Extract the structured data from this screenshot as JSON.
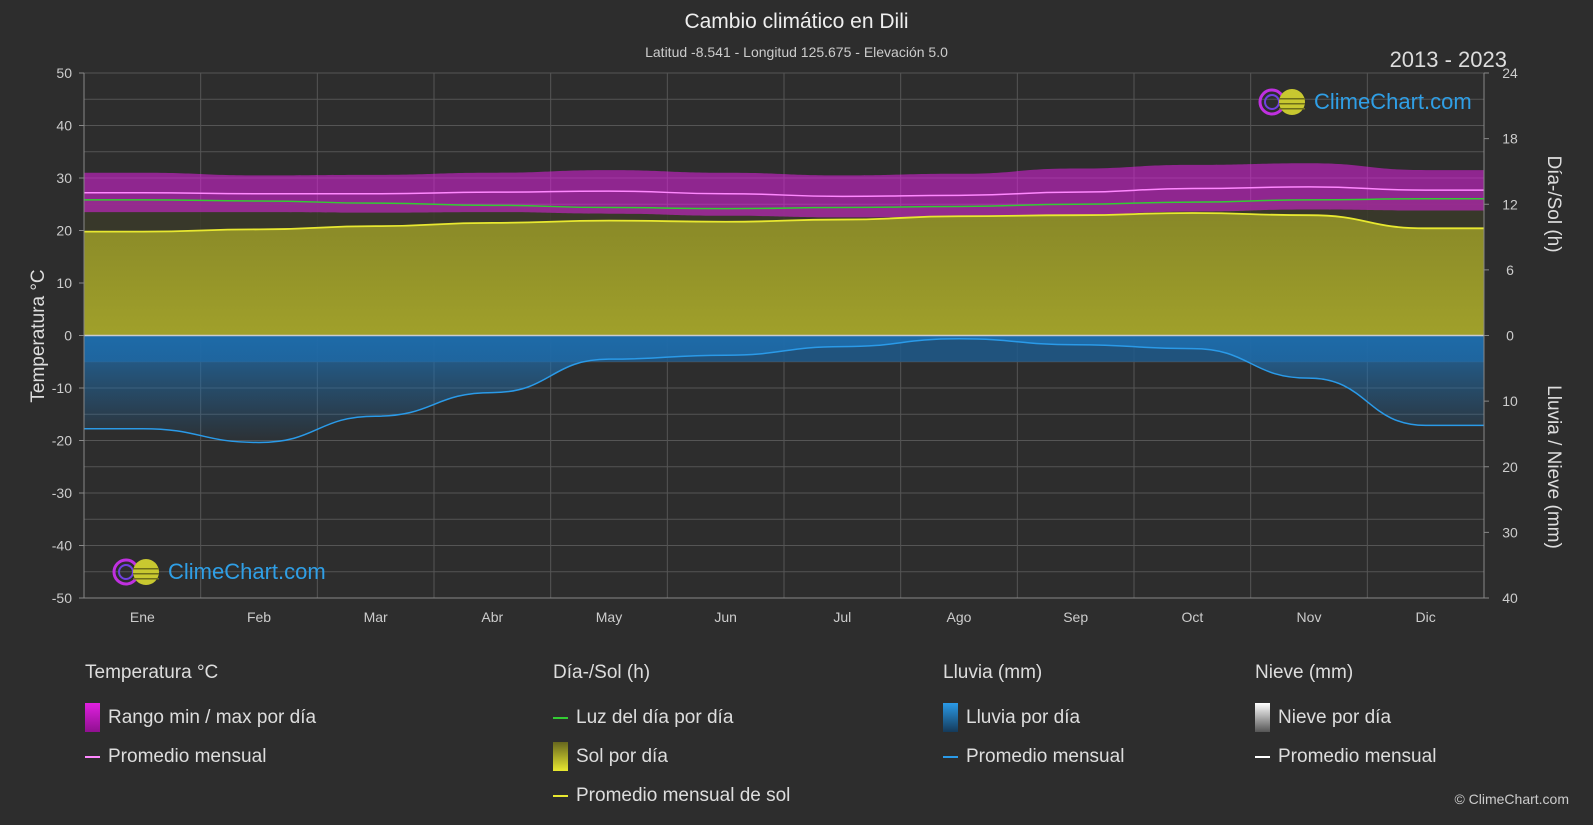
{
  "title": "Cambio climático en Dili",
  "subtitle": "Latitud -8.541 - Longitud 125.675 - Elevación 5.0",
  "years": "2013 - 2023",
  "copyright": "© ClimeChart.com",
  "logo_text": "ClimeChart.com",
  "colors": {
    "background": "#2d2d2d",
    "temp_range": "#e020e0",
    "temp_avg": "#ff88ff",
    "daylight": "#33cc33",
    "sunshine_fill": "#b8b828",
    "sunshine_avg": "#e8e830",
    "rain_fill": "#1e6fb0",
    "rain_avg": "#2a9ae8",
    "snow_avg": "#ffffff"
  },
  "chart_data": {
    "type": "line",
    "categories": [
      "Ene",
      "Feb",
      "Mar",
      "Abr",
      "May",
      "Jun",
      "Jul",
      "Ago",
      "Sep",
      "Oct",
      "Nov",
      "Dic"
    ],
    "left_axis": {
      "label": "Temperatura °C",
      "range": [
        -50,
        50
      ],
      "ticks": [
        "50",
        "40",
        "30",
        "20",
        "10",
        "0",
        "-10",
        "-20",
        "-30",
        "-40",
        "-50"
      ]
    },
    "right_axis_top": {
      "label": "Día-/Sol (h)",
      "range": [
        0,
        24
      ],
      "ticks": [
        "24",
        "18",
        "12",
        "6",
        "0"
      ]
    },
    "right_axis_bottom": {
      "label": "Lluvia / Nieve (mm)",
      "range": [
        0,
        40
      ],
      "ticks": [
        "0",
        "10",
        "20",
        "30",
        "40"
      ]
    },
    "grid": true,
    "series": [
      {
        "name": "Rango min / max por día",
        "axis": "temp",
        "kind": "band",
        "min": [
          23.5,
          23.5,
          23.4,
          23.5,
          23.2,
          22.8,
          22.5,
          22.6,
          23.0,
          23.6,
          24.0,
          23.8
        ],
        "max": [
          31.0,
          30.5,
          30.6,
          31.0,
          31.5,
          31.0,
          30.5,
          30.8,
          31.8,
          32.5,
          32.8,
          31.5
        ]
      },
      {
        "name": "Promedio mensual",
        "axis": "temp",
        "kind": "line",
        "values": [
          27.2,
          27.0,
          27.0,
          27.3,
          27.5,
          27.0,
          26.5,
          26.7,
          27.3,
          28.0,
          28.3,
          27.7
        ]
      },
      {
        "name": "Luz del día por día",
        "axis": "sun",
        "kind": "line",
        "values": [
          12.4,
          12.3,
          12.1,
          11.9,
          11.7,
          11.6,
          11.7,
          11.8,
          12.0,
          12.2,
          12.4,
          12.5
        ]
      },
      {
        "name": "Sol por día",
        "axis": "sun",
        "kind": "area",
        "values": [
          9.5,
          9.7,
          10.0,
          10.3,
          10.5,
          10.4,
          10.6,
          10.9,
          11.0,
          11.2,
          11.0,
          9.8
        ]
      },
      {
        "name": "Promedio mensual de sol",
        "axis": "sun",
        "kind": "line",
        "values": [
          9.5,
          9.7,
          10.0,
          10.3,
          10.5,
          10.4,
          10.6,
          10.9,
          11.0,
          11.2,
          11.0,
          9.8
        ]
      },
      {
        "name": "Lluvia por día",
        "axis": "rain",
        "kind": "area",
        "values": [
          14.2,
          16.3,
          12.3,
          8.7,
          3.6,
          3.0,
          1.7,
          0.5,
          1.4,
          2.0,
          6.5,
          13.7
        ]
      },
      {
        "name": "Promedio mensual",
        "axis": "rain",
        "kind": "line",
        "values": [
          14.2,
          16.3,
          12.3,
          8.7,
          3.6,
          3.0,
          1.7,
          0.5,
          1.4,
          2.0,
          6.5,
          13.7
        ]
      }
    ]
  },
  "legend": {
    "temperature": {
      "title": "Temperatura °C",
      "items": [
        "Rango min / max por día",
        "Promedio mensual"
      ]
    },
    "sun": {
      "title": "Día-/Sol (h)",
      "items": [
        "Luz del día por día",
        "Sol por día",
        "Promedio mensual de sol"
      ]
    },
    "rain": {
      "title": "Lluvia (mm)",
      "items": [
        "Lluvia por día",
        "Promedio mensual"
      ]
    },
    "snow": {
      "title": "Nieve (mm)",
      "items": [
        "Nieve por día",
        "Promedio mensual"
      ]
    }
  }
}
